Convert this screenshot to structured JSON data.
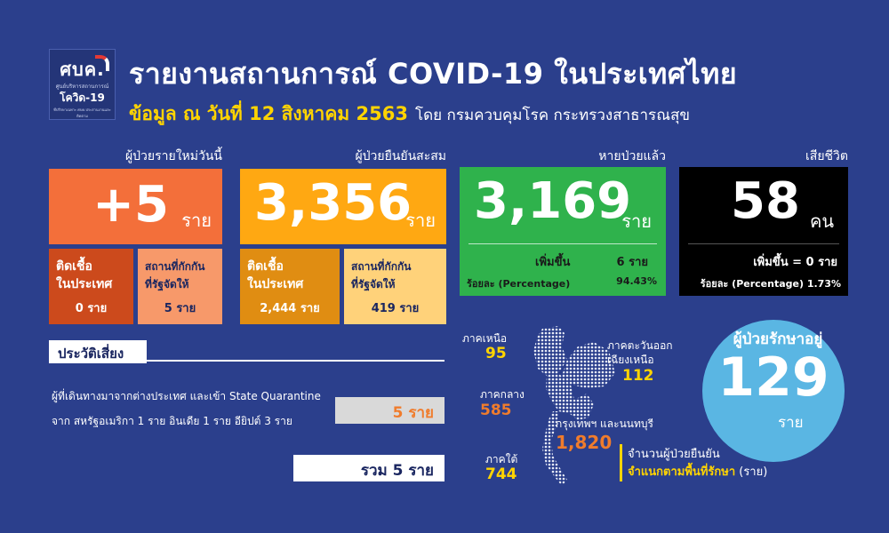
{
  "logo": {
    "line1": "ศบค.",
    "line2": "ศูนย์บริหารสถานการณ์",
    "line3": "โควิด-19",
    "line4": "ที่ปรึกษาเฉพาะ ศบค.ประสานงานและติดตาม"
  },
  "header": {
    "title": "รายงานสถานการณ์ COVID-19 ในประเทศไทย",
    "date_label": "ข้อมูล ณ วันที่ 12 สิงหาคม 2563",
    "source": "โดย กรมควบคุมโรค กระทรวงสาธารณสุข"
  },
  "new_cases": {
    "heading": "ผู้ป่วยรายใหม่วันนี้",
    "value": "+5",
    "unit": "ราย",
    "domestic_label1": "ติดเชื้อ",
    "domestic_label2": "ในประเทศ",
    "domestic_value": "0 ราย",
    "quarantine_label1": "สถานที่กักกัน",
    "quarantine_label2": "ที่รัฐจัดให้",
    "quarantine_value": "5 ราย"
  },
  "cumulative": {
    "heading": "ผู้ป่วยยืนยันสะสม",
    "value": "3,356",
    "unit": "ราย",
    "domestic_label1": "ติดเชื้อ",
    "domestic_label2": "ในประเทศ",
    "domestic_value": "2,444 ราย",
    "quarantine_label1": "สถานที่กักกัน",
    "quarantine_label2": "ที่รัฐจัดให้",
    "quarantine_value": "419 ราย"
  },
  "recovered": {
    "heading": "หายป่วยแล้ว",
    "value": "3,169",
    "unit": "ราย",
    "increase_label": "เพิ่มขึ้น",
    "increase_value": "6 ราย",
    "percent_label": "ร้อยละ (Percentage)",
    "percent_value": "94.43%"
  },
  "deaths": {
    "heading": "เสียชีวิต",
    "value": "58",
    "unit": "คน",
    "increase_text": "เพิ่มขึ้น = 0 ราย",
    "percent_text": "ร้อยละ (Percentage) 1.73%"
  },
  "risk": {
    "title": "ประวัติเสี่ยง",
    "line1": "ผู้ที่เดินทางมาจากต่างประเทศ และเข้า State Quarantine",
    "line2": "จาก สหรัฐอเมริกา 1 ราย อินเดีย 1 ราย  อียิปต์ 3 ราย",
    "value": "5 ราย",
    "total": "รวม 5 ราย"
  },
  "regions": {
    "north_name": "ภาคเหนือ",
    "north_value": "95",
    "northeast_name1": "ภาคตะวันออก",
    "northeast_name2": "เฉียงเหนือ",
    "northeast_value": "112",
    "central_name": "ภาคกลาง",
    "central_value": "585",
    "bangkok_name": "กรุงเทพฯ และนนทบุรี",
    "bangkok_value": "1,820",
    "south_name": "ภาคใต้",
    "south_value": "744"
  },
  "legend": {
    "line1": "จำนวนผู้ป่วยยืนยัน",
    "line2_bold": "จำแนกตามพื้นที่รักษา",
    "line2_rest": " (ราย)"
  },
  "in_treatment": {
    "label": "ผู้ป่วยรักษาอยู่",
    "value": "129",
    "unit": "ราย"
  },
  "colors": {
    "background": "#2b3f8c",
    "new_cases": "#f36f3a",
    "cumulative": "#ffa812",
    "recovered": "#2fb24c",
    "deaths": "#000000",
    "in_treatment": "#5ab6e3",
    "highlight": "#ffd400"
  }
}
